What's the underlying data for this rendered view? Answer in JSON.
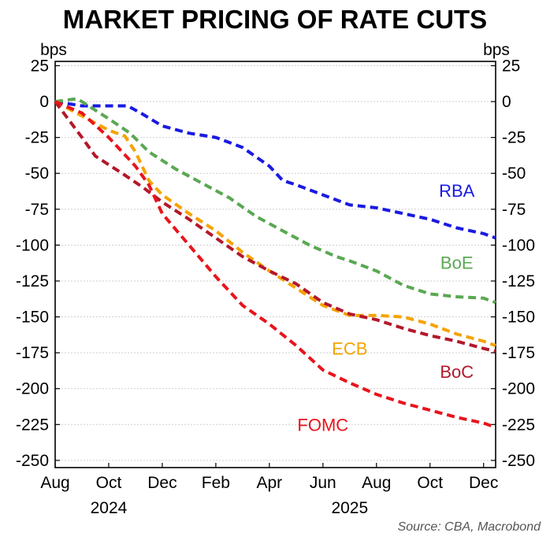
{
  "chart_data": {
    "type": "line",
    "title": "MARKET PRICING OF RATE CUTS",
    "ylabel_left": "bps",
    "ylabel_right": "bps",
    "source": "Source: CBA, Macrobond",
    "ylim": [
      -255,
      28
    ],
    "yticks": [
      25,
      0,
      -25,
      -50,
      -75,
      -100,
      -125,
      -150,
      -175,
      -200,
      -225,
      -250
    ],
    "xlim": [
      0,
      16.45
    ],
    "x_ticks": [
      {
        "x": 0,
        "label": "Aug"
      },
      {
        "x": 2,
        "label": "Oct"
      },
      {
        "x": 4,
        "label": "Dec"
      },
      {
        "x": 6,
        "label": "Feb"
      },
      {
        "x": 8,
        "label": "Apr"
      },
      {
        "x": 10,
        "label": "Jun"
      },
      {
        "x": 12,
        "label": "Aug"
      },
      {
        "x": 14,
        "label": "Oct"
      },
      {
        "x": 16,
        "label": "Dec"
      }
    ],
    "year_labels": [
      {
        "x": 2,
        "label": "2024"
      },
      {
        "x": 11,
        "label": "2025"
      }
    ],
    "grid": true,
    "colors": {
      "RBA": "#1a1ae0",
      "BoE": "#5aa852",
      "ECB": "#f5a300",
      "BoC": "#b3182a",
      "FOMC": "#e8141c"
    },
    "series": [
      {
        "name": "RBA",
        "label_pos": [
          15.0,
          -62
        ],
        "points": [
          [
            0,
            0
          ],
          [
            1,
            -3
          ],
          [
            2,
            -3
          ],
          [
            2.7,
            -3
          ],
          [
            3.2,
            -8
          ],
          [
            4,
            -17
          ],
          [
            5,
            -22
          ],
          [
            6,
            -25
          ],
          [
            7,
            -32
          ],
          [
            8,
            -45
          ],
          [
            8.5,
            -55
          ],
          [
            9,
            -58
          ],
          [
            10,
            -65
          ],
          [
            11,
            -72
          ],
          [
            12,
            -74
          ],
          [
            13,
            -78
          ],
          [
            14,
            -82
          ],
          [
            15,
            -88
          ],
          [
            16,
            -92
          ],
          [
            16.45,
            -95
          ]
        ]
      },
      {
        "name": "BoE",
        "label_pos": [
          15.0,
          -112
        ],
        "points": [
          [
            0,
            0
          ],
          [
            0.8,
            2
          ],
          [
            1,
            0
          ],
          [
            2,
            -12
          ],
          [
            2.8,
            -22
          ],
          [
            3.5,
            -35
          ],
          [
            4.5,
            -47
          ],
          [
            5.5,
            -57
          ],
          [
            6.5,
            -67
          ],
          [
            7.5,
            -80
          ],
          [
            8.5,
            -90
          ],
          [
            9.5,
            -100
          ],
          [
            10.5,
            -108
          ],
          [
            11,
            -111
          ],
          [
            12,
            -118
          ],
          [
            13,
            -128
          ],
          [
            14,
            -134
          ],
          [
            15,
            -136
          ],
          [
            16,
            -137
          ],
          [
            16.45,
            -140
          ]
        ]
      },
      {
        "name": "ECB",
        "label_pos": [
          11.0,
          -172
        ],
        "points": [
          [
            0,
            0
          ],
          [
            1,
            -10
          ],
          [
            2,
            -20
          ],
          [
            2.6,
            -24
          ],
          [
            3,
            -35
          ],
          [
            3.5,
            -55
          ],
          [
            4,
            -65
          ],
          [
            5,
            -78
          ],
          [
            6,
            -90
          ],
          [
            7,
            -105
          ],
          [
            8,
            -118
          ],
          [
            9,
            -130
          ],
          [
            10,
            -142
          ],
          [
            11,
            -149
          ],
          [
            12,
            -149
          ],
          [
            13,
            -150
          ],
          [
            14,
            -155
          ],
          [
            15,
            -162
          ],
          [
            16,
            -167
          ],
          [
            16.45,
            -170
          ]
        ]
      },
      {
        "name": "BoC",
        "label_pos": [
          15.0,
          -188
        ],
        "points": [
          [
            0,
            0
          ],
          [
            1,
            -25
          ],
          [
            1.5,
            -38
          ],
          [
            2.5,
            -50
          ],
          [
            3.3,
            -60
          ],
          [
            4,
            -70
          ],
          [
            5,
            -82
          ],
          [
            6,
            -95
          ],
          [
            7,
            -108
          ],
          [
            8,
            -118
          ],
          [
            9,
            -127
          ],
          [
            10,
            -140
          ],
          [
            11,
            -148
          ],
          [
            12,
            -152
          ],
          [
            13,
            -158
          ],
          [
            14,
            -163
          ],
          [
            15,
            -167
          ],
          [
            16,
            -172
          ],
          [
            16.45,
            -174
          ]
        ]
      },
      {
        "name": "FOMC",
        "label_pos": [
          10.0,
          -225
        ],
        "points": [
          [
            0,
            0
          ],
          [
            1,
            -8
          ],
          [
            2,
            -25
          ],
          [
            3,
            -45
          ],
          [
            3.5,
            -58
          ],
          [
            4,
            -78
          ],
          [
            5,
            -100
          ],
          [
            6,
            -122
          ],
          [
            7,
            -142
          ],
          [
            8,
            -155
          ],
          [
            9,
            -170
          ],
          [
            10,
            -187
          ],
          [
            11,
            -196
          ],
          [
            12,
            -204
          ],
          [
            13,
            -210
          ],
          [
            14,
            -215
          ],
          [
            15,
            -220
          ],
          [
            16,
            -224
          ],
          [
            16.45,
            -227
          ]
        ]
      }
    ]
  }
}
